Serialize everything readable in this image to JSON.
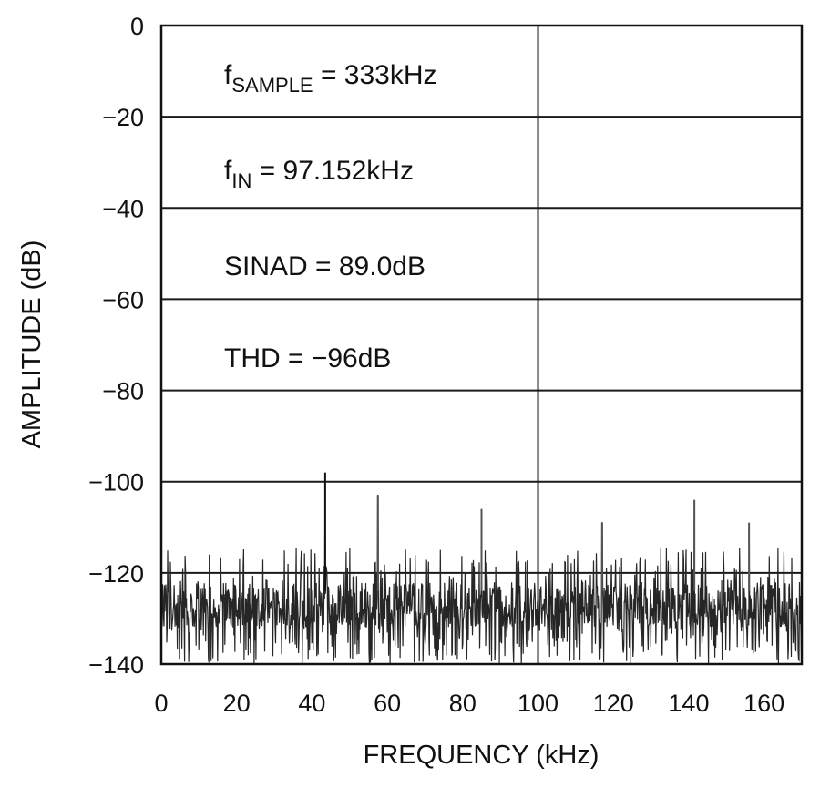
{
  "chart_data": {
    "type": "line",
    "title": "",
    "xlabel": "FREQUENCY (kHz)",
    "ylabel": "AMPLITUDE (dB)",
    "xlim": [
      0,
      170
    ],
    "ylim": [
      -140,
      0
    ],
    "x_ticks": [
      0,
      20,
      40,
      60,
      80,
      100,
      120,
      140,
      160
    ],
    "x_tick_labels": [
      "0",
      "20",
      "40",
      "60",
      "80",
      "100",
      "120",
      "140",
      "160"
    ],
    "y_ticks": [
      0,
      -20,
      -40,
      -60,
      -80,
      -100,
      -120,
      -140
    ],
    "y_tick_labels": [
      "0",
      "−20",
      "−40",
      "−60",
      "−80",
      "−100",
      "−120",
      "−140"
    ],
    "grid": {
      "horizontal": true,
      "vertical": [
        100
      ]
    },
    "noise_floor_db": -120,
    "noise_min_db": -140,
    "peaks": [
      {
        "x": 43.5,
        "y": -98
      },
      {
        "x": 57.5,
        "y": -103
      },
      {
        "x": 85.0,
        "y": -106
      },
      {
        "x": 117.0,
        "y": -109
      },
      {
        "x": 141.5,
        "y": -104
      },
      {
        "x": 156.0,
        "y": -109
      }
    ],
    "annotations": [
      {
        "main": "f",
        "sub": "SAMPLE",
        "rest": " = 333kHz"
      },
      {
        "main": "f",
        "sub": "IN",
        "rest": " = 97.152kHz"
      },
      {
        "main": "SINAD = 89.0dB",
        "sub": "",
        "rest": ""
      },
      {
        "main": "THD = −96dB",
        "sub": "",
        "rest": ""
      }
    ],
    "colors": {
      "trace": "#262626",
      "grid": "#1a1a1a",
      "frame": "#111111"
    }
  }
}
